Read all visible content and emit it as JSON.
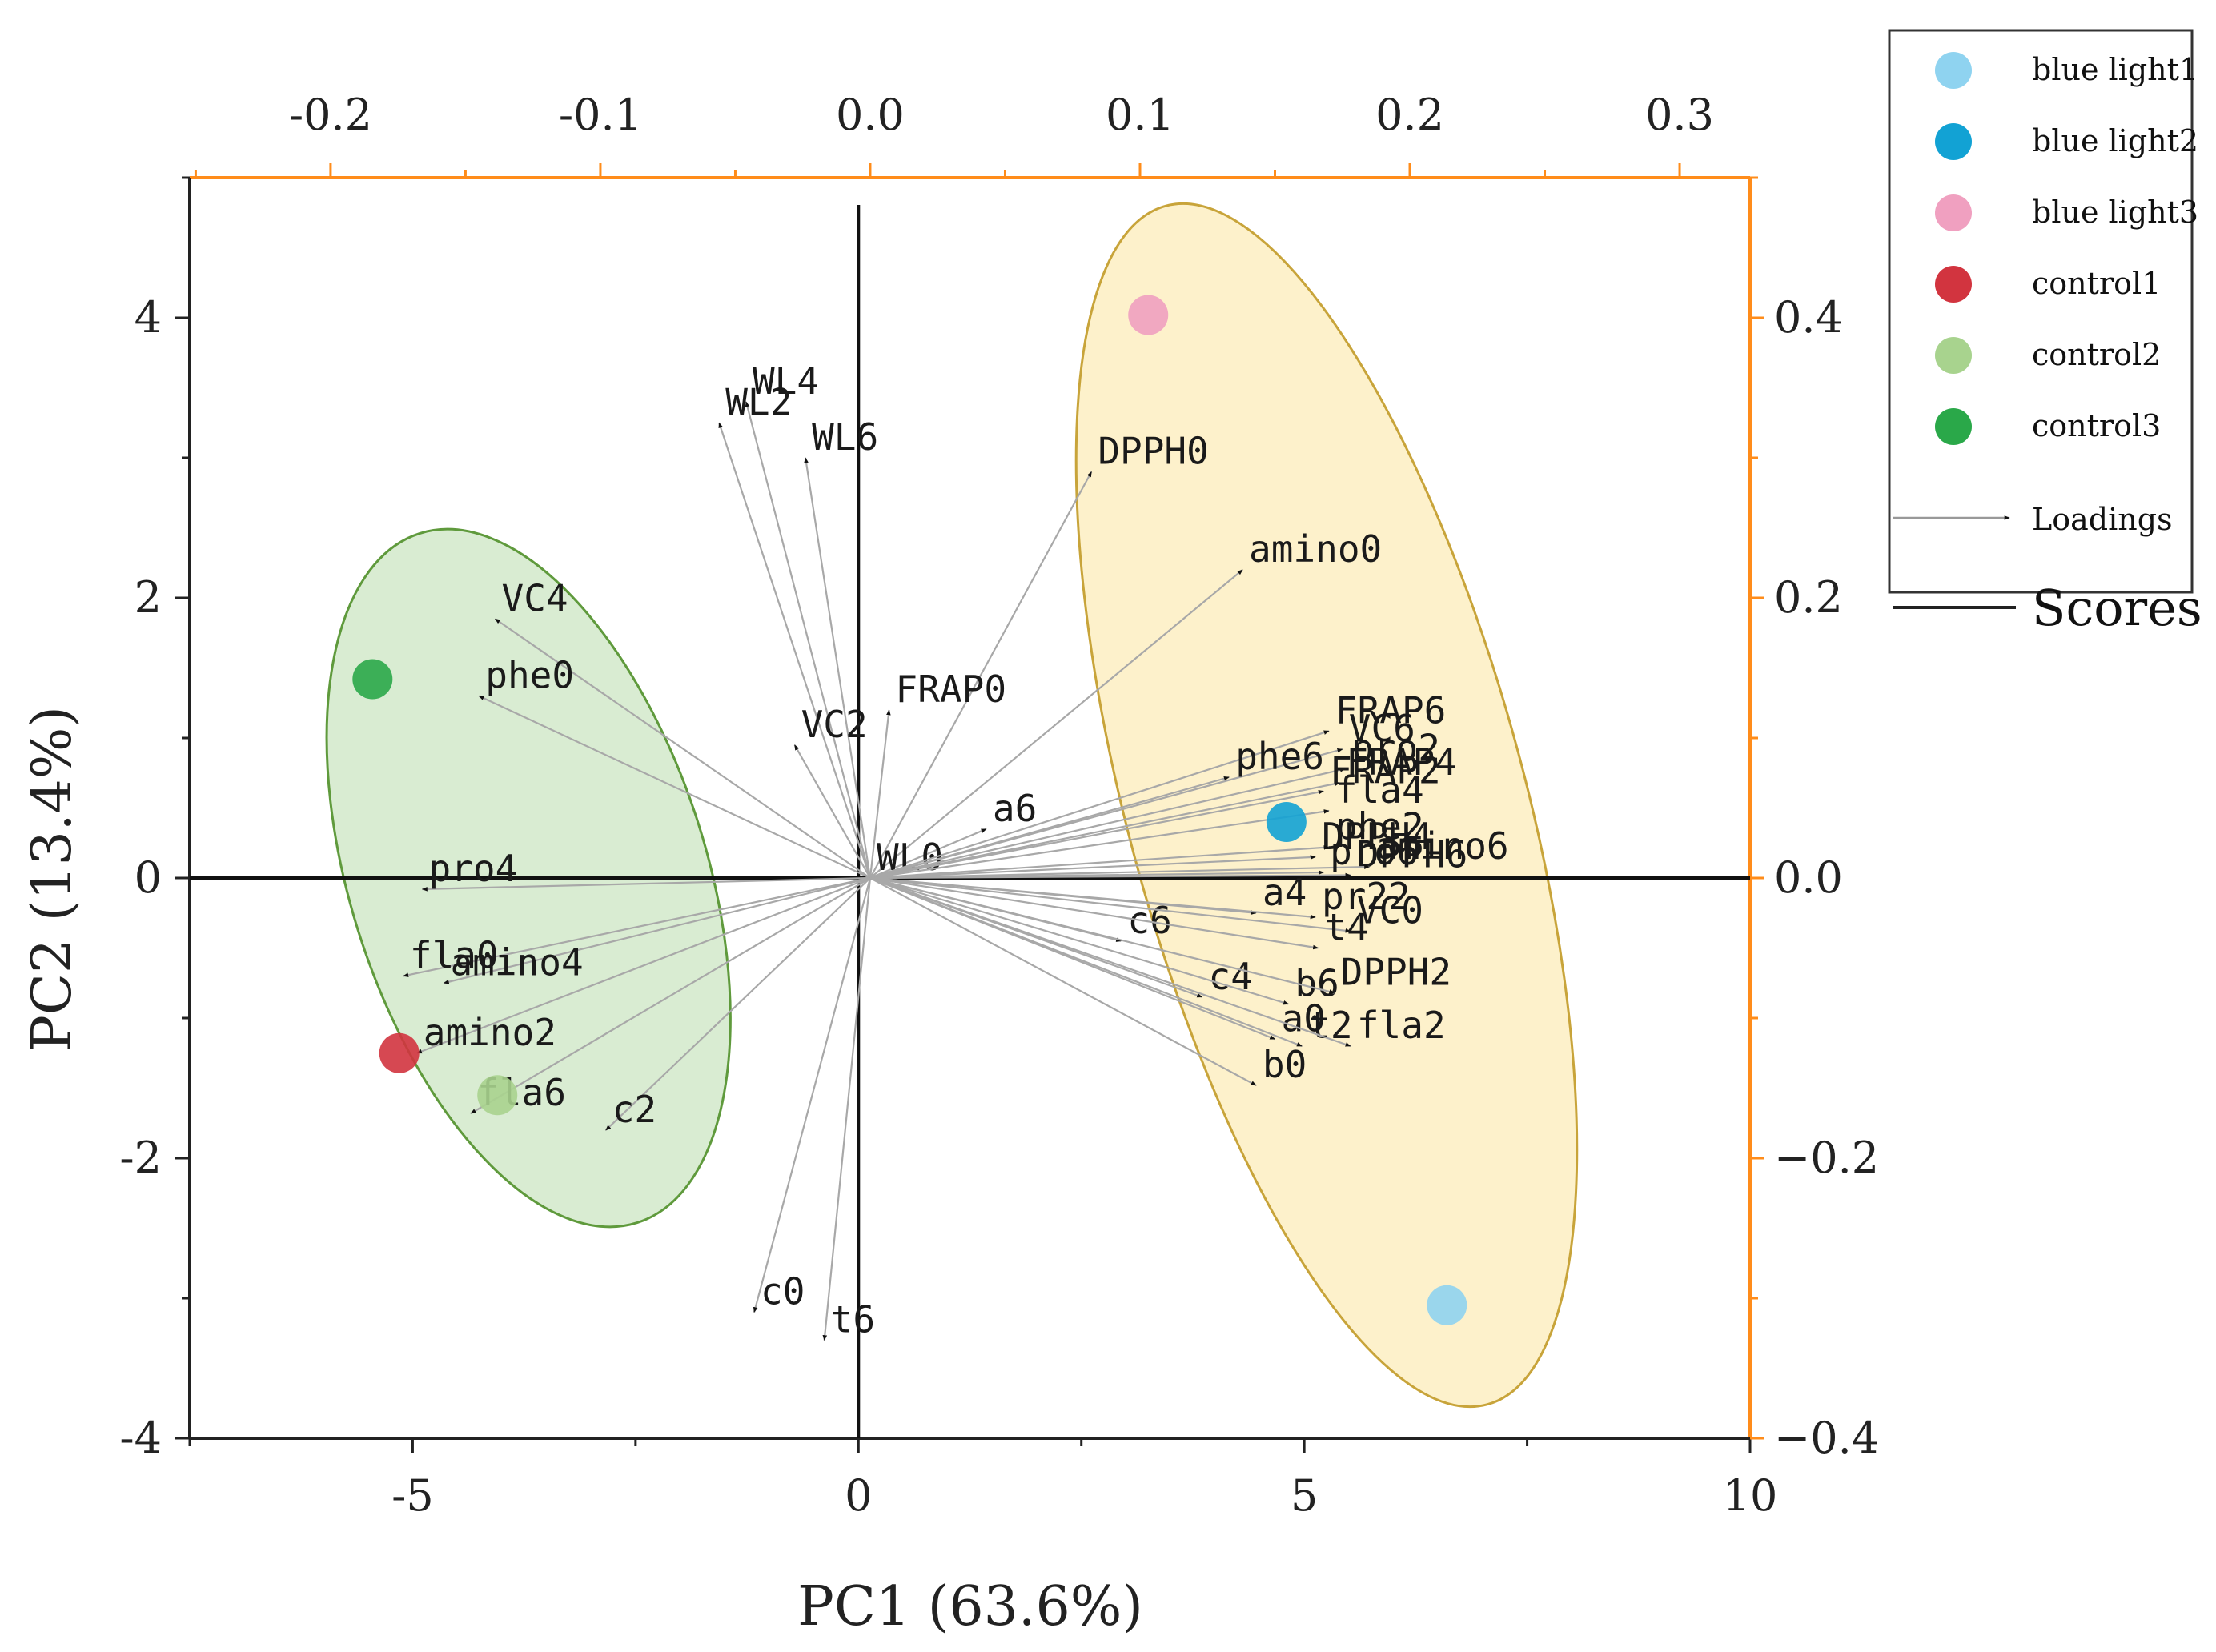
{
  "chart_data": {
    "type": "scatter",
    "subtype": "pca-biplot",
    "xlabel": "PC1 (63.6%)",
    "ylabel": "PC2 (13.4%)",
    "xlim": [
      -7.5,
      10
    ],
    "ylim": [
      -4,
      5
    ],
    "x_ticks": [
      "-5",
      "0",
      "5",
      "10"
    ],
    "y_ticks": [
      "-4",
      "-2",
      "0",
      "2",
      "4"
    ],
    "top_axis": {
      "lim": [
        -0.2522,
        0.3261
      ],
      "ticks": [
        -0.2,
        -0.1,
        0.0,
        0.1,
        0.2,
        0.3
      ],
      "tick_labels": [
        "-0.2",
        "-0.1",
        "0.0",
        "0.1",
        "0.2",
        "0.3"
      ],
      "color": "#ff8c1a"
    },
    "right_axis": {
      "lim": [
        -0.4,
        0.5
      ],
      "ticks": [
        -0.4,
        -0.2,
        0.0,
        0.2,
        0.4
      ],
      "tick_labels": [
        "−0.4",
        "−0.2",
        "0.0",
        "0.2",
        "0.4"
      ],
      "color": "#ff8c1a"
    },
    "scores": [
      {
        "name": "blue light1",
        "x": 6.6,
        "y": -3.05,
        "color": "#8fd3f0"
      },
      {
        "name": "blue light2",
        "x": 4.8,
        "y": 0.4,
        "color": "#12a2d4"
      },
      {
        "name": "blue light3",
        "x": 3.25,
        "y": 4.02,
        "color": "#f0a0c0"
      },
      {
        "name": "control1",
        "x": -5.15,
        "y": -1.25,
        "color": "#d2343f"
      },
      {
        "name": "control2",
        "x": -4.05,
        "y": -1.55,
        "color": "#a8d38e"
      },
      {
        "name": "control3",
        "x": -5.45,
        "y": 1.42,
        "color": "#2aa849"
      }
    ],
    "ellipses": [
      {
        "group": "control",
        "cx": -3.7,
        "cy": 0.0,
        "rx": 2.0,
        "ry": 2.58,
        "rotation_deg": -17.5,
        "fill": "#bfe0b4",
        "stroke": "#5f9a3c"
      },
      {
        "group": "blue light",
        "cx": 5.25,
        "cy": 0.52,
        "rx": 2.23,
        "ry": 4.43,
        "rotation_deg": -15,
        "fill": "#fbe7a8",
        "stroke": "#c8a43a"
      }
    ],
    "loadings": [
      {
        "label": "WL4",
        "x": -0.046,
        "y": 0.34
      },
      {
        "label": "WL2",
        "x": -0.056,
        "y": 0.325
      },
      {
        "label": "WL6",
        "x": -0.024,
        "y": 0.3
      },
      {
        "label": "DPPH0",
        "x": 0.082,
        "y": 0.29
      },
      {
        "label": "amino0",
        "x": 0.138,
        "y": 0.22
      },
      {
        "label": "VC4",
        "x": -0.139,
        "y": 0.185
      },
      {
        "label": "phe0",
        "x": -0.145,
        "y": 0.13
      },
      {
        "label": "FRAP0",
        "x": 0.007,
        "y": 0.12
      },
      {
        "label": "VC2",
        "x": -0.028,
        "y": 0.095
      },
      {
        "label": "a6",
        "x": 0.043,
        "y": 0.035
      },
      {
        "label": "WL0",
        "x": 0.0,
        "y": 0.0
      },
      {
        "label": "pro4",
        "x": -0.166,
        "y": -0.008
      },
      {
        "label": "fla0",
        "x": -0.173,
        "y": -0.07
      },
      {
        "label": "amino4",
        "x": -0.158,
        "y": -0.075
      },
      {
        "label": "amino2",
        "x": -0.168,
        "y": -0.125
      },
      {
        "label": "fla6",
        "x": -0.148,
        "y": -0.168
      },
      {
        "label": "c2",
        "x": -0.098,
        "y": -0.18
      },
      {
        "label": "c0",
        "x": -0.043,
        "y": -0.31
      },
      {
        "label": "t6",
        "x": -0.017,
        "y": -0.33
      },
      {
        "label": "FRAP6",
        "x": 0.17,
        "y": 0.105
      },
      {
        "label": "VC6",
        "x": 0.175,
        "y": 0.092
      },
      {
        "label": "pro2",
        "x": 0.176,
        "y": 0.078
      },
      {
        "label": "FRAP4",
        "x": 0.174,
        "y": 0.068
      },
      {
        "label": "FRAP2",
        "x": 0.168,
        "y": 0.062
      },
      {
        "label": "phe6",
        "x": 0.133,
        "y": 0.072
      },
      {
        "label": "fla4",
        "x": 0.17,
        "y": 0.048
      },
      {
        "label": "DPPH4",
        "x": 0.165,
        "y": 0.015
      },
      {
        "label": "phe2",
        "x": 0.17,
        "y": 0.022
      },
      {
        "label": "DPPH6",
        "x": 0.178,
        "y": 0.002
      },
      {
        "label": "amino6",
        "x": 0.185,
        "y": 0.008
      },
      {
        "label": "pro6",
        "x": 0.168,
        "y": 0.004
      },
      {
        "label": "a4",
        "x": 0.143,
        "y": -0.025
      },
      {
        "label": "pr22",
        "x": 0.165,
        "y": -0.028
      },
      {
        "label": "c6",
        "x": 0.093,
        "y": -0.045
      },
      {
        "label": "VC0",
        "x": 0.178,
        "y": -0.038
      },
      {
        "label": "t4",
        "x": 0.166,
        "y": -0.05
      },
      {
        "label": "c4",
        "x": 0.123,
        "y": -0.085
      },
      {
        "label": "b6",
        "x": 0.155,
        "y": -0.09
      },
      {
        "label": "DPPH2",
        "x": 0.172,
        "y": -0.082
      },
      {
        "label": "a0",
        "x": 0.15,
        "y": -0.115
      },
      {
        "label": "t2",
        "x": 0.16,
        "y": -0.12
      },
      {
        "label": "fla2",
        "x": 0.178,
        "y": -0.12
      },
      {
        "label": "b0",
        "x": 0.143,
        "y": -0.148
      }
    ],
    "legend": {
      "position": "top-right outside",
      "items": [
        {
          "label": "blue light1",
          "type": "marker",
          "color": "#8fd3f0"
        },
        {
          "label": "blue light2",
          "type": "marker",
          "color": "#12a2d4"
        },
        {
          "label": "blue light3",
          "type": "marker",
          "color": "#f0a0c0"
        },
        {
          "label": "control1",
          "type": "marker",
          "color": "#d2343f"
        },
        {
          "label": "control2",
          "type": "marker",
          "color": "#a8d38e"
        },
        {
          "label": "control3",
          "type": "marker",
          "color": "#2aa849"
        },
        {
          "label": "Loadings",
          "type": "arrow",
          "color": "#999999"
        },
        {
          "label": "Scores",
          "type": "line",
          "color": "#222222"
        }
      ]
    }
  }
}
